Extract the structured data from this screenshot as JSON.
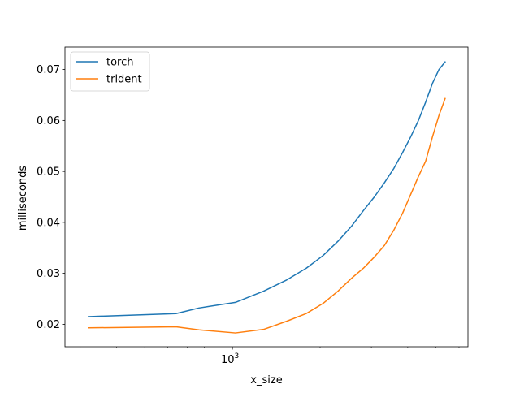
{
  "chart_data": {
    "type": "line",
    "title": "",
    "xlabel": "x_size",
    "ylabel": "milliseconds",
    "xscale": "log",
    "xlim": [
      266,
      6440
    ],
    "ylim": [
      0.0156,
      0.0744
    ],
    "grid": false,
    "legend_position": "top-left",
    "x_major_ticks": [
      1000
    ],
    "x_major_tick_labels": [
      "10^3"
    ],
    "x_minor_ticks": [
      300,
      400,
      500,
      600,
      700,
      800,
      900,
      2000,
      3000,
      4000,
      5000,
      6000
    ],
    "y_ticks": [
      0.02,
      0.03,
      0.04,
      0.05,
      0.06,
      0.07
    ],
    "y_tick_labels": [
      "0.02",
      "0.03",
      "0.04",
      "0.05",
      "0.06",
      "0.07"
    ],
    "series": [
      {
        "name": "torch",
        "color": "#1f77b4",
        "x": [
          320,
          640,
          768,
          1024,
          1280,
          1536,
          1792,
          2048,
          2304,
          2560,
          2816,
          3072,
          3328,
          3584,
          3840,
          4096,
          4352,
          4608,
          4864,
          5120,
          5376
        ],
        "y": [
          0.0215,
          0.0221,
          0.0232,
          0.0243,
          0.0265,
          0.0287,
          0.031,
          0.0335,
          0.0363,
          0.0392,
          0.0423,
          0.045,
          0.0478,
          0.0506,
          0.0537,
          0.0568,
          0.06,
          0.0636,
          0.0673,
          0.07,
          0.0715
        ]
      },
      {
        "name": "trident",
        "color": "#ff7f0e",
        "x": [
          320,
          640,
          768,
          1024,
          1280,
          1536,
          1792,
          2048,
          2304,
          2560,
          2816,
          3072,
          3328,
          3584,
          3840,
          4096,
          4352,
          4608,
          4864,
          5120,
          5376
        ],
        "y": [
          0.0193,
          0.0195,
          0.0189,
          0.0183,
          0.019,
          0.0206,
          0.0221,
          0.0241,
          0.0265,
          0.029,
          0.031,
          0.0332,
          0.0355,
          0.0385,
          0.0418,
          0.0455,
          0.049,
          0.052,
          0.0568,
          0.061,
          0.0643
        ]
      }
    ]
  }
}
